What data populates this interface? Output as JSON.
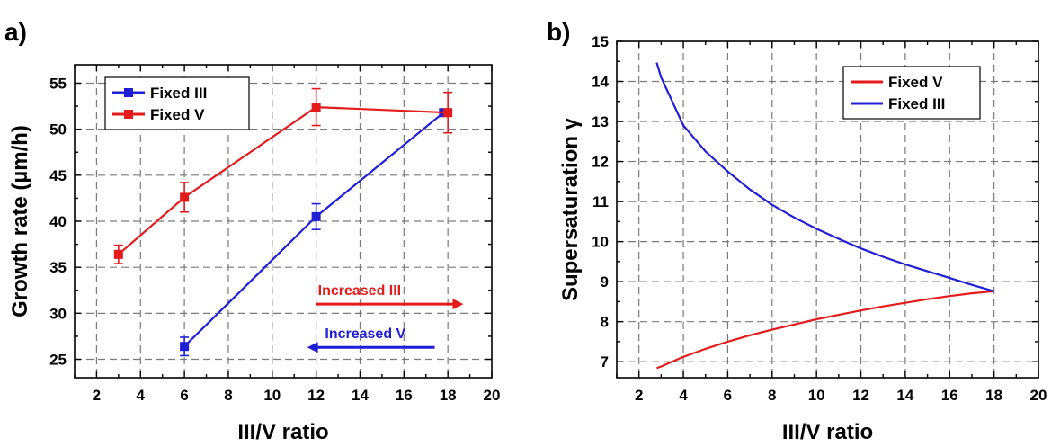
{
  "chart_data": [
    {
      "type": "line",
      "panel_label": "a)",
      "xlabel": "III/V ratio",
      "ylabel": "Growth rate (µm/h)",
      "xlim": [
        1,
        20
      ],
      "ylim": [
        23,
        57
      ],
      "x_ticks": [
        2,
        4,
        6,
        8,
        10,
        12,
        14,
        16,
        18,
        20
      ],
      "y_ticks": [
        25,
        30,
        35,
        40,
        45,
        50,
        55
      ],
      "grid": true,
      "legend_position": "top-left",
      "series": [
        {
          "name": "Fixed III",
          "color": "#1f1fd6",
          "marker": "square",
          "x": [
            6,
            12,
            17.8
          ],
          "y": [
            26.4,
            40.5,
            51.8
          ],
          "yerr": [
            1.0,
            1.4,
            0
          ]
        },
        {
          "name": "Fixed V",
          "color": "#e31b1b",
          "marker": "square",
          "x": [
            3,
            6,
            12,
            18
          ],
          "y": [
            36.4,
            42.6,
            52.4,
            51.8
          ],
          "yerr": [
            1.0,
            1.6,
            2.0,
            2.2
          ]
        }
      ],
      "annotations": [
        {
          "text": "Increased III",
          "color": "#e31b1b",
          "direction": "right",
          "x_from": 12,
          "x_to": 18.3,
          "y": 31
        },
        {
          "text": "Increased V",
          "color": "#1f1fd6",
          "direction": "left",
          "x_from": 17.4,
          "x_to": 12,
          "y": 26.3
        }
      ]
    },
    {
      "type": "line",
      "panel_label": "b)",
      "xlabel": "III/V ratio",
      "ylabel": "Supersaturation γ",
      "xlim": [
        1,
        20
      ],
      "ylim": [
        6.6,
        15
      ],
      "x_ticks": [
        2,
        4,
        6,
        8,
        10,
        12,
        14,
        16,
        18,
        20
      ],
      "y_ticks": [
        7,
        8,
        9,
        10,
        11,
        12,
        13,
        14,
        15
      ],
      "grid": true,
      "legend_position": "top-right",
      "series": [
        {
          "name": "Fixed V",
          "color": "#e31b1b",
          "x": [
            2.8,
            3,
            4,
            5,
            6,
            7,
            8,
            9,
            10,
            11,
            12,
            13,
            14,
            15,
            16,
            17,
            18
          ],
          "y": [
            6.84,
            6.88,
            7.12,
            7.32,
            7.5,
            7.66,
            7.8,
            7.93,
            8.06,
            8.17,
            8.28,
            8.38,
            8.47,
            8.56,
            8.64,
            8.71,
            8.76
          ]
        },
        {
          "name": "Fixed III",
          "color": "#1f1fd6",
          "x": [
            2.8,
            3,
            4,
            5,
            6,
            7,
            8,
            9,
            10,
            11,
            12,
            13,
            14,
            15,
            16,
            17,
            18
          ],
          "y": [
            14.47,
            14.1,
            12.9,
            12.25,
            11.75,
            11.3,
            10.92,
            10.6,
            10.32,
            10.07,
            9.83,
            9.62,
            9.43,
            9.26,
            9.09,
            8.92,
            8.76
          ]
        }
      ]
    }
  ]
}
